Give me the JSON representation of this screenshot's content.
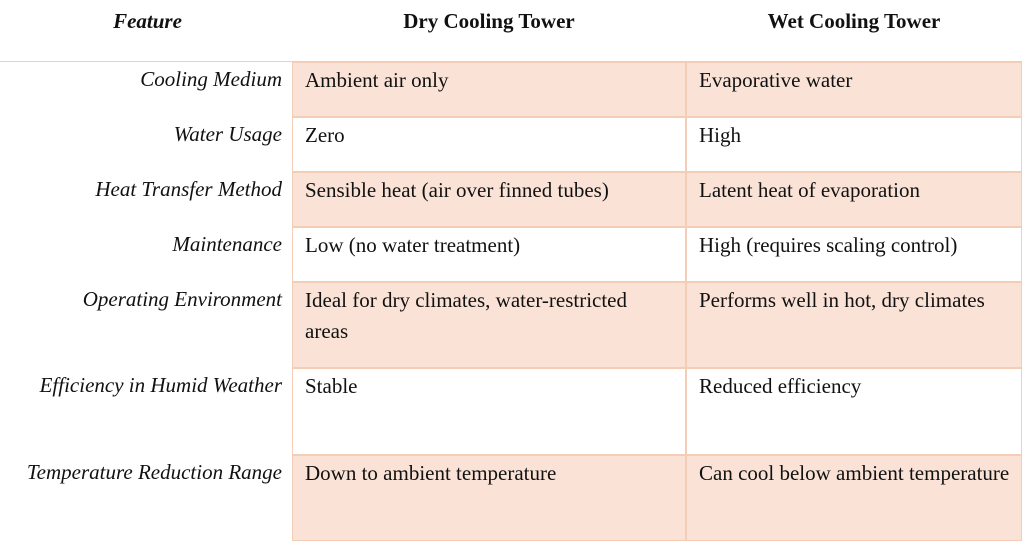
{
  "table": {
    "header": [
      "Feature",
      "Dry Cooling Tower",
      "Wet Cooling Tower"
    ],
    "rows": [
      [
        "Cooling Medium",
        "Ambient air only",
        "Evaporative water"
      ],
      [
        "Water Usage",
        "Zero",
        "High"
      ],
      [
        "Heat Transfer Method",
        "Sensible heat (air over finned tubes)",
        "Latent heat of evaporation"
      ],
      [
        "Maintenance",
        "Low (no water treatment)",
        "High (requires scaling control)"
      ],
      [
        "Operating Environment",
        "Ideal for dry climates, water-restricted areas",
        "Performs well in hot, dry climates"
      ],
      [
        "Efficiency in Humid Weather",
        "Stable",
        "Reduced efficiency"
      ],
      [
        "Temperature Reduction Range",
        "Down to ambient temperature",
        "Can cool below ambient temperature"
      ]
    ]
  }
}
